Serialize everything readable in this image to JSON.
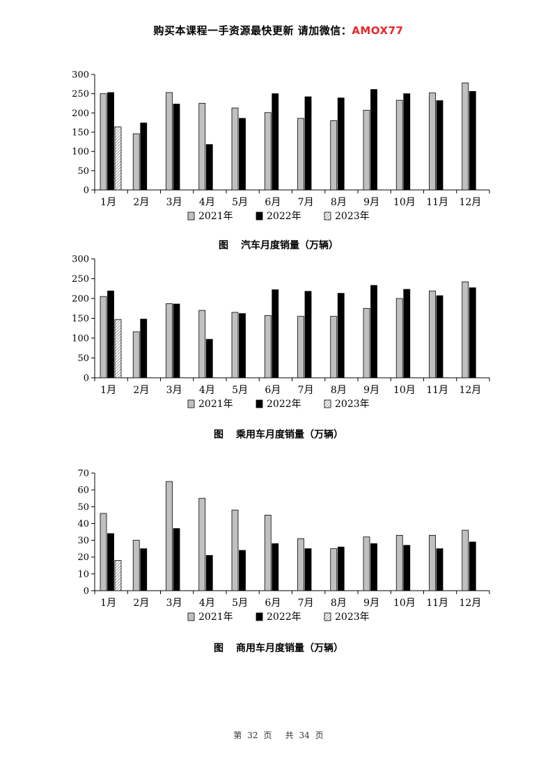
{
  "banner": {
    "text": "购买本课程一手资源最快更新 请加微信：",
    "accent": "AMOX77",
    "accent_color": "#e8262b"
  },
  "chart_data": [
    {
      "type": "bar",
      "title": "汽车月度销量（万辆）",
      "figure_label": "图",
      "categories": [
        "1月",
        "2月",
        "3月",
        "4月",
        "5月",
        "6月",
        "7月",
        "8月",
        "9月",
        "10月",
        "11月",
        "12月"
      ],
      "series": [
        {
          "name": "2021年",
          "values": [
            250,
            146,
            253,
            225,
            213,
            201,
            186,
            180,
            207,
            233,
            252,
            278
          ]
        },
        {
          "name": "2022年",
          "values": [
            253,
            174,
            223,
            118,
            186,
            250,
            242,
            239,
            261,
            250,
            232,
            256
          ]
        },
        {
          "name": "2023年",
          "values": [
            164,
            null,
            null,
            null,
            null,
            null,
            null,
            null,
            null,
            null,
            null,
            null
          ]
        }
      ],
      "ylim": [
        0,
        300
      ],
      "yticks": [
        0,
        50,
        100,
        150,
        200,
        250,
        300
      ],
      "legend_position": "bottom",
      "grid": false
    },
    {
      "type": "bar",
      "title": "乘用车月度销量（万辆）",
      "figure_label": "图",
      "categories": [
        "1月",
        "2月",
        "3月",
        "4月",
        "5月",
        "6月",
        "7月",
        "8月",
        "9月",
        "10月",
        "11月",
        "12月"
      ],
      "series": [
        {
          "name": "2021年",
          "values": [
            205,
            116,
            187,
            170,
            165,
            157,
            155,
            155,
            175,
            200,
            219,
            242
          ]
        },
        {
          "name": "2022年",
          "values": [
            219,
            148,
            186,
            97,
            162,
            222,
            218,
            213,
            233,
            223,
            207,
            227
          ]
        },
        {
          "name": "2023年",
          "values": [
            147,
            null,
            null,
            null,
            null,
            null,
            null,
            null,
            null,
            null,
            null,
            null
          ]
        }
      ],
      "ylim": [
        0,
        300
      ],
      "yticks": [
        0,
        50,
        100,
        150,
        200,
        250,
        300
      ],
      "legend_position": "bottom",
      "grid": false
    },
    {
      "type": "bar",
      "title": "商用车月度销量（万辆）",
      "figure_label": "图",
      "categories": [
        "1月",
        "2月",
        "3月",
        "4月",
        "5月",
        "6月",
        "7月",
        "8月",
        "9月",
        "10月",
        "11月",
        "12月"
      ],
      "series": [
        {
          "name": "2021年",
          "values": [
            46,
            30,
            65,
            55,
            48,
            45,
            31,
            25,
            32,
            33,
            33,
            36
          ]
        },
        {
          "name": "2022年",
          "values": [
            34,
            25,
            37,
            21,
            24,
            28,
            25,
            26,
            28,
            27,
            25,
            29
          ]
        },
        {
          "name": "2023年",
          "values": [
            18,
            null,
            null,
            null,
            null,
            null,
            null,
            null,
            null,
            null,
            null,
            null
          ]
        }
      ],
      "ylim": [
        0,
        70
      ],
      "yticks": [
        0,
        10,
        20,
        30,
        40,
        50,
        60,
        70
      ],
      "legend_position": "bottom",
      "grid": false
    }
  ],
  "colors": {
    "series_2021": "#c0c0c0",
    "series_2022": "#000000",
    "series_2023_pattern": "diagonal-hatch"
  },
  "footer": {
    "page_prefix": "第",
    "page_number": "32",
    "page_word": "页",
    "total_prefix": "共",
    "total_number": "34",
    "total_word": "页"
  }
}
